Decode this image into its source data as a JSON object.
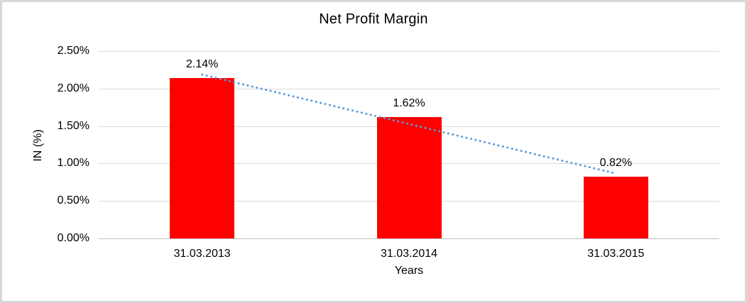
{
  "window": {
    "background": "#ffffff",
    "border_color": "#d8d8d8"
  },
  "chart_data": {
    "type": "bar",
    "title": "Net Profit Margin",
    "xlabel": "Years",
    "ylabel": "IN (%)",
    "categories": [
      "31.03.2013",
      "31.03.2014",
      "31.03.2015"
    ],
    "values": [
      2.14,
      1.62,
      0.82
    ],
    "data_labels": [
      "2.14%",
      "1.62%",
      "0.82%"
    ],
    "ylim": [
      0,
      2.5
    ],
    "yticks": [
      {
        "value": 0,
        "label": "0.00%"
      },
      {
        "value": 0.5,
        "label": "0.50%"
      },
      {
        "value": 1,
        "label": "1.00%"
      },
      {
        "value": 1.5,
        "label": "1.50%"
      },
      {
        "value": 2,
        "label": "2.00%"
      },
      {
        "value": 2.5,
        "label": "2.50%"
      }
    ],
    "grid": true,
    "legend": false,
    "bar_color": "#ff0000",
    "gridline_color": "#d9d9d9",
    "axis_line_color": "#bfbfbf",
    "text_color": "#000000",
    "trendline": {
      "type": "linear",
      "style": "dotted",
      "color": "#5b9bd5",
      "fitted_values": [
        2.1867,
        1.5267,
        0.8667
      ]
    }
  }
}
